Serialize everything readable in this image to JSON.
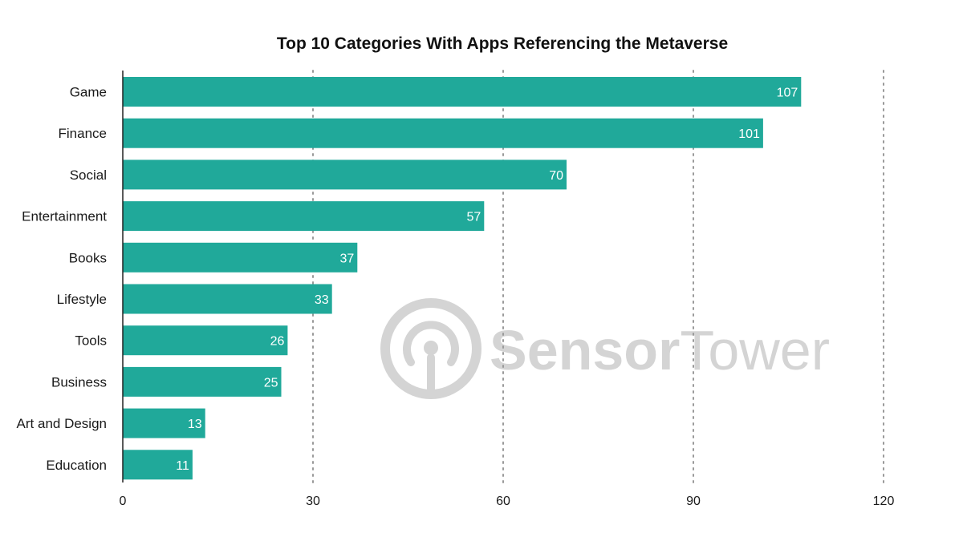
{
  "chart_data": {
    "type": "bar",
    "orientation": "horizontal",
    "title": "Top 10 Categories With Apps Referencing the Metaverse",
    "categories": [
      "Game",
      "Finance",
      "Social",
      "Entertainment",
      "Books",
      "Lifestyle",
      "Tools",
      "Business",
      "Art and Design",
      "Education"
    ],
    "values": [
      107,
      101,
      70,
      57,
      37,
      33,
      26,
      25,
      13,
      11
    ],
    "xlim": [
      0,
      120
    ],
    "xticks": [
      0,
      30,
      60,
      90,
      120
    ],
    "xlabel": "",
    "ylabel": "",
    "grid": "vertical dotted",
    "bar_color": "#20a99a",
    "value_label_color": "#ffffff"
  },
  "watermark": {
    "text_part1": "Sensor",
    "text_part2": "Tower",
    "icon": "sensor-tower-logo-icon",
    "color": "#d4d4d4"
  }
}
